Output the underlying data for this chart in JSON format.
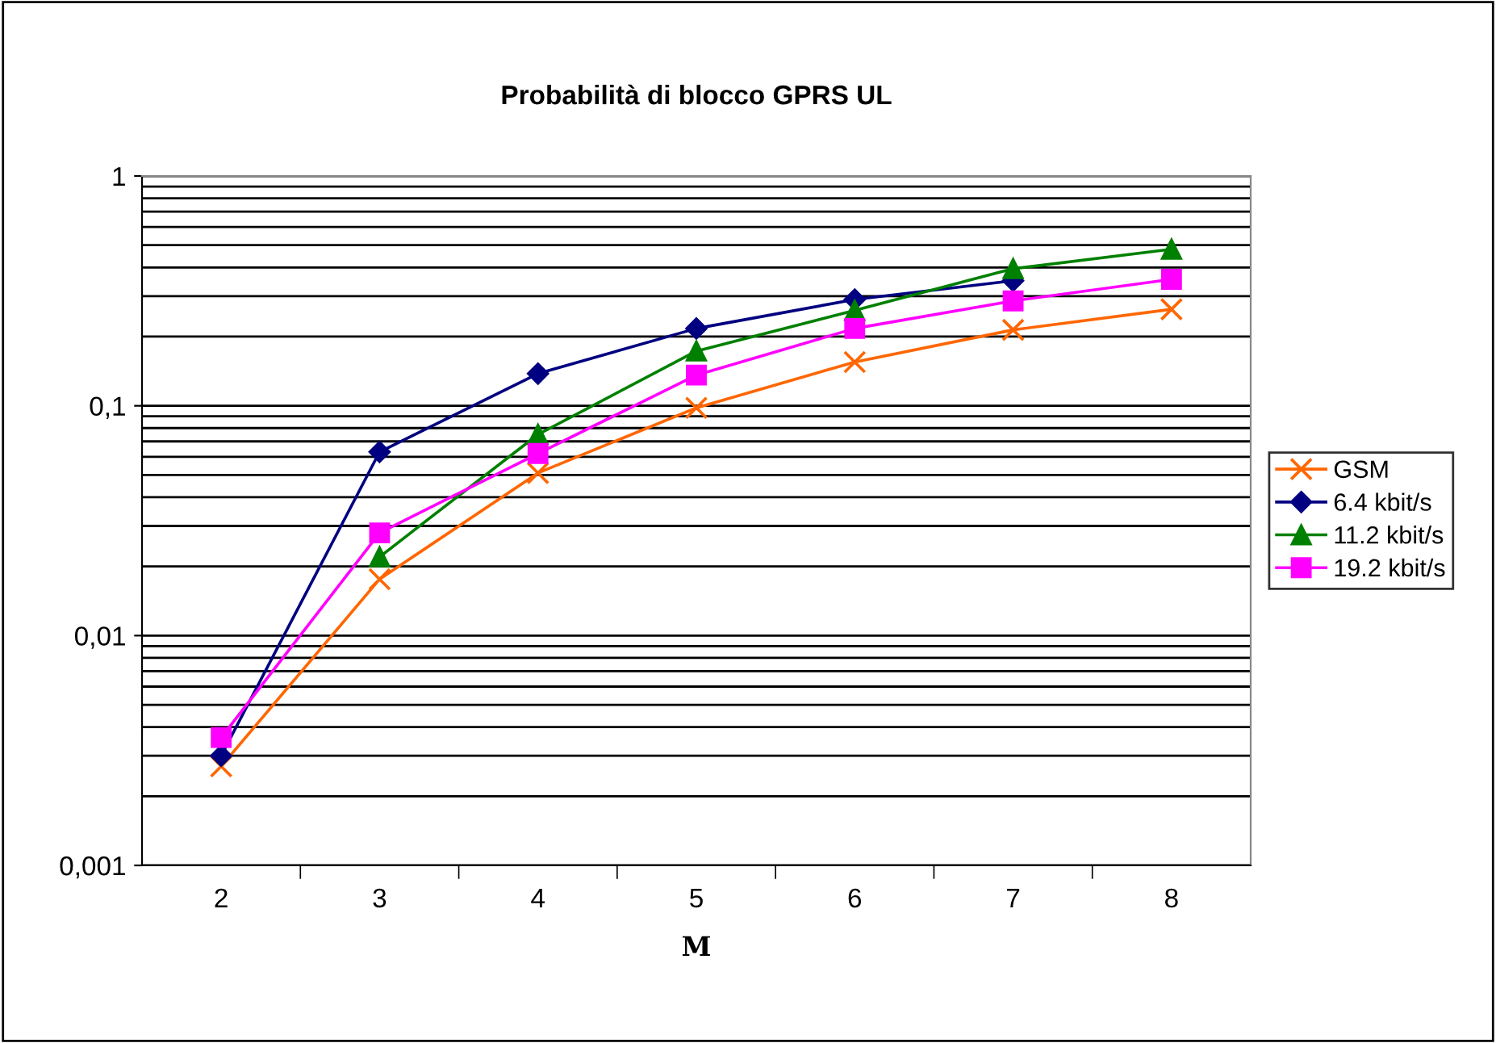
{
  "chart_data": {
    "type": "line",
    "title": "Probabilità di blocco GPRS UL",
    "xlabel": "M",
    "categories": [
      "2",
      "3",
      "4",
      "5",
      "6",
      "7",
      "8"
    ],
    "series": [
      {
        "name": "GSM",
        "color": "#ff6600",
        "marker": "cross",
        "values": [
          0.0027,
          0.0176,
          0.051,
          0.098,
          0.155,
          0.214,
          0.263
        ]
      },
      {
        "name": "6.4 kbit/s",
        "color": "#000080",
        "marker": "diamond",
        "values": [
          0.003,
          0.063,
          0.138,
          0.217,
          0.29,
          0.35,
          null
        ]
      },
      {
        "name": "11.2 kbit/s",
        "color": "#008000",
        "marker": "triangle",
        "values": [
          null,
          0.022,
          0.075,
          0.173,
          0.26,
          0.395,
          0.48
        ]
      },
      {
        "name": "19.2 kbit/s",
        "color": "#ff00ff",
        "marker": "square",
        "values": [
          0.0036,
          0.028,
          0.062,
          0.136,
          0.217,
          0.286,
          0.355
        ]
      }
    ],
    "log": "y",
    "ylim": [
      0.001,
      1
    ],
    "yticks": [
      {
        "value": 0.001,
        "label": "0,001"
      },
      {
        "value": 0.01,
        "label": "0,01"
      },
      {
        "value": 0.1,
        "label": "0,1"
      },
      {
        "value": 1,
        "label": "1"
      }
    ],
    "grid": "y",
    "legend": "right"
  }
}
